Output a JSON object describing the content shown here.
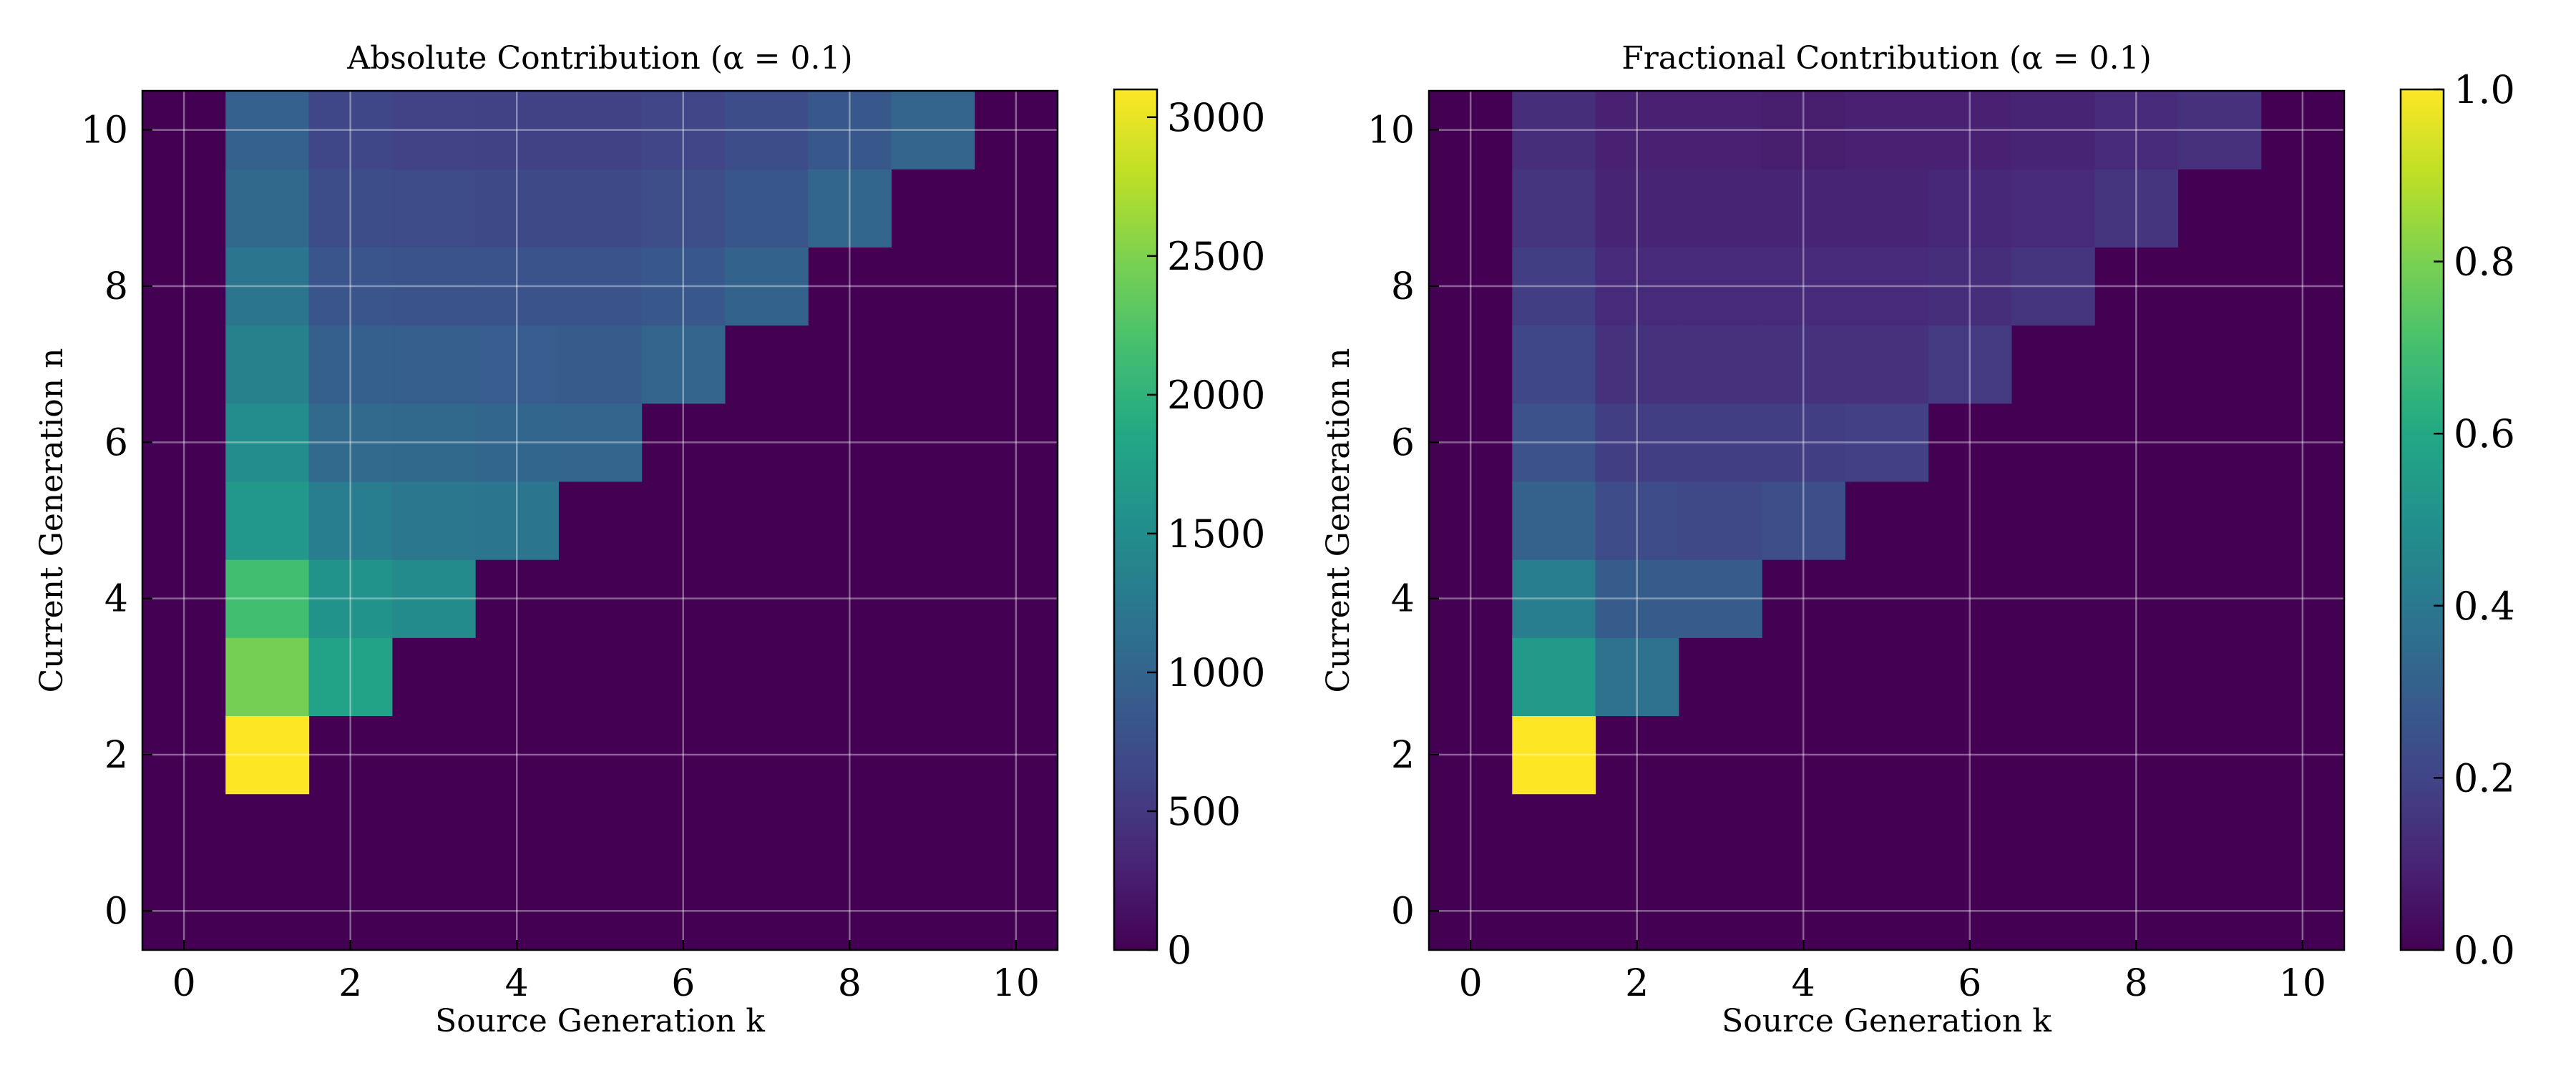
{
  "chart_data": [
    {
      "type": "heatmap",
      "title": "Absolute Contribution (α = 0.1)",
      "xlabel": "Source Generation k",
      "ylabel": "Current Generation n",
      "xlim": [
        -0.5,
        10.5
      ],
      "ylim": [
        -0.5,
        10.5
      ],
      "xticks": [
        "0",
        "2",
        "4",
        "6",
        "8",
        "10"
      ],
      "yticks": [
        "0",
        "2",
        "4",
        "6",
        "8",
        "10"
      ],
      "grid": true,
      "colormap": "viridis",
      "colorbar": {
        "min": 0,
        "max": 3100,
        "ticks": [
          "0",
          "500",
          "1000",
          "1500",
          "2000",
          "2500",
          "3000"
        ]
      },
      "rows": [
        {
          "n": 2,
          "k_start": 1,
          "values": [
            3100
          ]
        },
        {
          "n": 3,
          "k_start": 1,
          "values": [
            2450,
            1780
          ]
        },
        {
          "n": 4,
          "k_start": 1,
          "values": [
            2150,
            1580,
            1480
          ]
        },
        {
          "n": 5,
          "k_start": 1,
          "values": [
            1650,
            1300,
            1230,
            1200
          ]
        },
        {
          "n": 6,
          "k_start": 1,
          "values": [
            1500,
            1080,
            1050,
            1020,
            1000
          ]
        },
        {
          "n": 7,
          "k_start": 1,
          "values": [
            1350,
            930,
            920,
            910,
            900,
            1000
          ]
        },
        {
          "n": 8,
          "k_start": 1,
          "values": [
            1200,
            820,
            800,
            790,
            790,
            850,
            980
          ]
        },
        {
          "n": 9,
          "k_start": 1,
          "values": [
            1050,
            720,
            700,
            690,
            690,
            730,
            830,
            1020
          ]
        },
        {
          "n": 10,
          "k_start": 1,
          "values": [
            950,
            650,
            610,
            600,
            600,
            640,
            720,
            850,
            1000
          ]
        }
      ]
    },
    {
      "type": "heatmap",
      "title": "Fractional Contribution (α = 0.1)",
      "xlabel": "Source Generation k",
      "ylabel": "Current Generation n",
      "xlim": [
        -0.5,
        10.5
      ],
      "ylim": [
        -0.5,
        10.5
      ],
      "xticks": [
        "0",
        "2",
        "4",
        "6",
        "8",
        "10"
      ],
      "yticks": [
        "0",
        "2",
        "4",
        "6",
        "8",
        "10"
      ],
      "grid": true,
      "colormap": "viridis",
      "colorbar": {
        "min": 0.0,
        "max": 1.0,
        "ticks": [
          "0.0",
          "0.2",
          "0.4",
          "0.6",
          "0.8",
          "1.0"
        ]
      },
      "rows": [
        {
          "n": 2,
          "k_start": 1,
          "values": [
            1.0
          ]
        },
        {
          "n": 3,
          "k_start": 1,
          "values": [
            0.54,
            0.37
          ]
        },
        {
          "n": 4,
          "k_start": 1,
          "values": [
            0.42,
            0.29,
            0.29
          ]
        },
        {
          "n": 5,
          "k_start": 1,
          "values": [
            0.31,
            0.23,
            0.22,
            0.24
          ]
        },
        {
          "n": 6,
          "k_start": 1,
          "values": [
            0.25,
            0.18,
            0.18,
            0.18,
            0.19
          ]
        },
        {
          "n": 7,
          "k_start": 1,
          "values": [
            0.21,
            0.14,
            0.14,
            0.14,
            0.14,
            0.17
          ]
        },
        {
          "n": 8,
          "k_start": 1,
          "values": [
            0.18,
            0.12,
            0.12,
            0.12,
            0.12,
            0.13,
            0.15
          ]
        },
        {
          "n": 9,
          "k_start": 1,
          "values": [
            0.15,
            0.1,
            0.1,
            0.1,
            0.1,
            0.11,
            0.12,
            0.15
          ]
        },
        {
          "n": 10,
          "k_start": 1,
          "values": [
            0.13,
            0.09,
            0.09,
            0.08,
            0.09,
            0.09,
            0.1,
            0.12,
            0.14
          ]
        }
      ]
    }
  ]
}
